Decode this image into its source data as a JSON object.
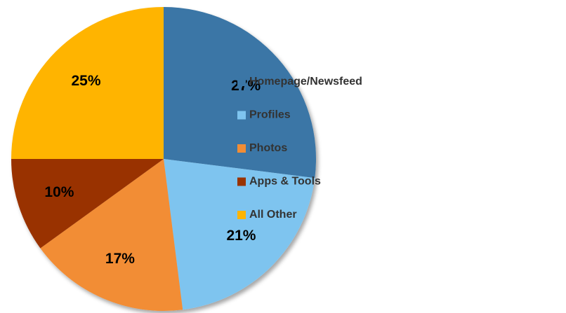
{
  "chart_data": {
    "type": "pie",
    "categories": [
      "Homepage/Newsfeed",
      "Profiles",
      "Photos",
      "Apps & Tools",
      "All Other"
    ],
    "values": [
      27,
      21,
      17,
      10,
      25
    ],
    "value_labels": [
      "27%",
      "21%",
      "17%",
      "10%",
      "25%"
    ],
    "colors": [
      "#3a76a6",
      "#7ec4ef",
      "#f28d35",
      "#993300",
      "#ffb400"
    ],
    "legend": "right"
  }
}
